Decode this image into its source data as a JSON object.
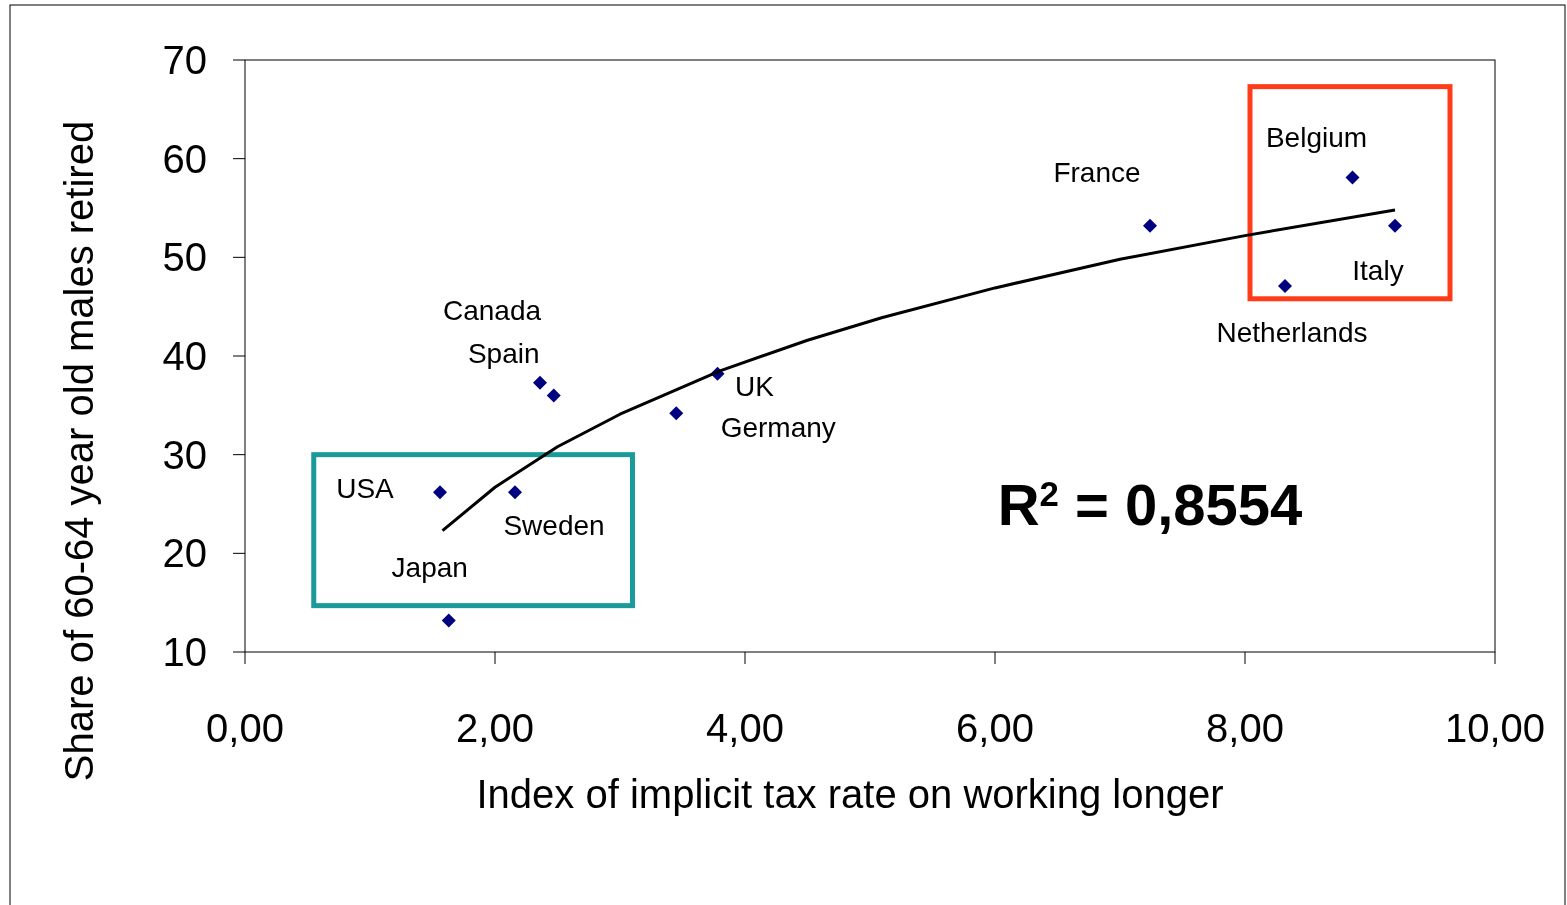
{
  "chart_data": {
    "type": "scatter",
    "xlabel": "Index of implicit tax rate on working longer",
    "ylabel": "Share of 60-64 year old males retired",
    "xlim": [
      0,
      10
    ],
    "xticks": [
      {
        "value": 0,
        "label": "0,00"
      },
      {
        "value": 2,
        "label": "2,00"
      },
      {
        "value": 4,
        "label": "4,00"
      },
      {
        "value": 6,
        "label": "6,00"
      },
      {
        "value": 8,
        "label": "8,00"
      },
      {
        "value": 10,
        "label": "10,00"
      }
    ],
    "ylim": [
      10,
      70
    ],
    "yticks": [
      10,
      20,
      30,
      40,
      50,
      60,
      70
    ],
    "grid": false,
    "marker": "diamond",
    "series": [
      {
        "color": "#000080",
        "x": [
          1.56,
          1.63,
          2.16,
          2.36,
          2.47,
          3.45,
          3.78,
          7.24,
          8.32,
          8.86,
          9.2
        ],
        "values": [
          26.2,
          13.2,
          26.2,
          37.3,
          36.0,
          34.2,
          38.2,
          53.2,
          47.1,
          58.1,
          53.2
        ]
      },
      {
        "type": "line",
        "color": "#000000",
        "marker": "none",
        "x": [
          1.58,
          2,
          2.5,
          3,
          3.8,
          4.5,
          5.1,
          6,
          7,
          8,
          9.2
        ],
        "values": [
          22.3,
          26.7,
          30.8,
          34.1,
          38.5,
          41.6,
          43.9,
          46.9,
          49.8,
          52.2,
          54.8
        ]
      }
    ],
    "annotations": [
      {
        "text": "USA",
        "x": 1.56,
        "y": 26.2
      },
      {
        "text": "Japan",
        "x": 1.63,
        "y": 13.2
      },
      {
        "text": "Sweden",
        "x": 2.16,
        "y": 26.2
      },
      {
        "text": "Canada",
        "x": 2.36,
        "y": 37.3
      },
      {
        "text": "Spain",
        "x": 2.47,
        "y": 36.0
      },
      {
        "text": "Germany",
        "x": 3.45,
        "y": 34.2
      },
      {
        "text": "UK",
        "x": 3.78,
        "y": 38.2
      },
      {
        "text": "France",
        "x": 7.24,
        "y": 53.2
      },
      {
        "text": "Netherlands",
        "x": 8.32,
        "y": 47.1
      },
      {
        "text": "Belgium",
        "x": 8.86,
        "y": 58.1
      },
      {
        "text": "Italy",
        "x": 9.2,
        "y": 53.2
      },
      "R$^{2}$ = 0,8554"
    ]
  }
}
